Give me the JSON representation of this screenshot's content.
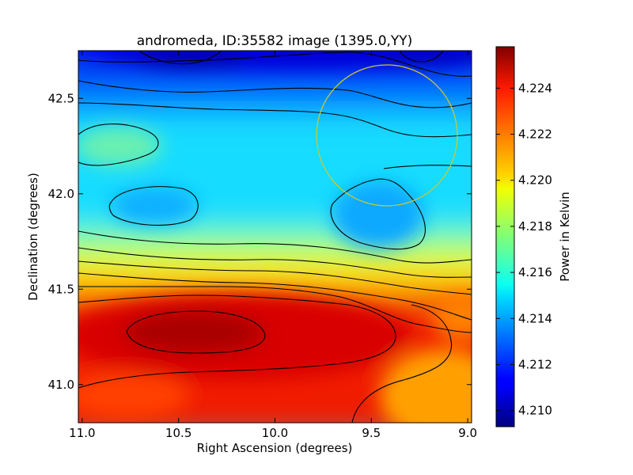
{
  "chart_data": {
    "type": "heatmap",
    "title": "andromeda, ID:35582 image (1395.0,YY)",
    "xlabel": "Right Ascension (degrees)",
    "ylabel": "Declination (degrees)",
    "xlim": [
      11.02,
      8.98
    ],
    "ylim": [
      40.8,
      42.75
    ],
    "x_ticks": [
      11.0,
      10.5,
      10.0,
      9.5,
      9.0
    ],
    "x_tick_labels": [
      "11.0",
      "10.5",
      "10.0",
      "9.5",
      "9.0"
    ],
    "y_ticks": [
      41.0,
      41.5,
      42.0,
      42.5
    ],
    "y_tick_labels": [
      "41.0",
      "41.5",
      "42.0",
      "42.5"
    ],
    "colorbar": {
      "label": "Power in Kelvin",
      "range": [
        4.2093,
        4.2258
      ],
      "ticks": [
        4.21,
        4.212,
        4.214,
        4.216,
        4.218,
        4.22,
        4.222,
        4.224
      ],
      "tick_labels": [
        "4.210",
        "4.212",
        "4.214",
        "4.216",
        "4.218",
        "4.220",
        "4.222",
        "4.224"
      ],
      "colormap": "jet"
    },
    "hotspot": {
      "ra": 10.45,
      "dec": 41.25,
      "value": 4.2255
    },
    "cold_region": {
      "ra": 10.3,
      "dec": 42.72,
      "value": 4.2095
    },
    "circle_overlay": {
      "ra": 9.38,
      "dec": 42.31,
      "radius_deg": 0.37,
      "color": "#c8c832"
    },
    "grid": false
  }
}
